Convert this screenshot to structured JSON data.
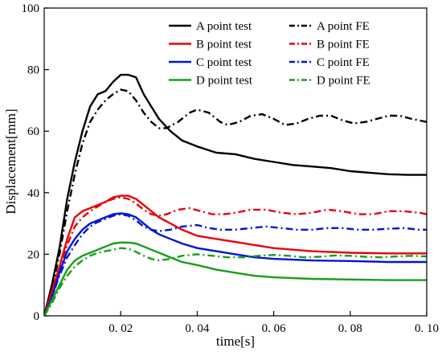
{
  "chart_data": {
    "type": "line",
    "xlabel": "time[s]",
    "ylabel": "Displacement[mm]",
    "xlim": [
      0,
      0.1
    ],
    "ylim": [
      0,
      100
    ],
    "x_ticks": [
      {
        "value": 0.02,
        "label": "0. 02"
      },
      {
        "value": 0.04,
        "label": "0. 04"
      },
      {
        "value": 0.06,
        "label": "0. 06"
      },
      {
        "value": 0.08,
        "label": "0. 08"
      },
      {
        "value": 0.1,
        "label": "0. 10"
      }
    ],
    "y_ticks": [
      {
        "value": 0,
        "label": "0"
      },
      {
        "value": 20,
        "label": "20"
      },
      {
        "value": 40,
        "label": "40"
      },
      {
        "value": 60,
        "label": "60"
      },
      {
        "value": 80,
        "label": "80"
      },
      {
        "value": 100,
        "label": "100"
      }
    ],
    "grid": false,
    "legend_position": "top-right",
    "series": [
      {
        "name": "A point test",
        "color": "#000000",
        "style": "solid",
        "points": [
          [
            0,
            0
          ],
          [
            0.002,
            10
          ],
          [
            0.004,
            22
          ],
          [
            0.006,
            38
          ],
          [
            0.008,
            50
          ],
          [
            0.01,
            60
          ],
          [
            0.012,
            68
          ],
          [
            0.014,
            72
          ],
          [
            0.016,
            73
          ],
          [
            0.018,
            76
          ],
          [
            0.02,
            78.3
          ],
          [
            0.022,
            78.3
          ],
          [
            0.024,
            77.5
          ],
          [
            0.026,
            72
          ],
          [
            0.028,
            68
          ],
          [
            0.03,
            64
          ],
          [
            0.033,
            60
          ],
          [
            0.036,
            57
          ],
          [
            0.04,
            55
          ],
          [
            0.045,
            53
          ],
          [
            0.05,
            52.5
          ],
          [
            0.055,
            51
          ],
          [
            0.06,
            50
          ],
          [
            0.065,
            49
          ],
          [
            0.07,
            48.5
          ],
          [
            0.075,
            48
          ],
          [
            0.08,
            47
          ],
          [
            0.085,
            46.5
          ],
          [
            0.09,
            46
          ],
          [
            0.095,
            45.8
          ],
          [
            0.1,
            45.8
          ]
        ]
      },
      {
        "name": "A point FE",
        "color": "#000000",
        "style": "dashdot",
        "points": [
          [
            0,
            0
          ],
          [
            0.002,
            8
          ],
          [
            0.004,
            20
          ],
          [
            0.006,
            34
          ],
          [
            0.008,
            46
          ],
          [
            0.01,
            56
          ],
          [
            0.012,
            63
          ],
          [
            0.014,
            67
          ],
          [
            0.016,
            70
          ],
          [
            0.018,
            72
          ],
          [
            0.02,
            73.5
          ],
          [
            0.022,
            73
          ],
          [
            0.024,
            70
          ],
          [
            0.026,
            66
          ],
          [
            0.028,
            63
          ],
          [
            0.03,
            61
          ],
          [
            0.032,
            61
          ],
          [
            0.035,
            63
          ],
          [
            0.038,
            66
          ],
          [
            0.04,
            67
          ],
          [
            0.043,
            66
          ],
          [
            0.046,
            63
          ],
          [
            0.048,
            62
          ],
          [
            0.051,
            63
          ],
          [
            0.054,
            65
          ],
          [
            0.057,
            65.5
          ],
          [
            0.06,
            64
          ],
          [
            0.063,
            62
          ],
          [
            0.066,
            62.5
          ],
          [
            0.069,
            64
          ],
          [
            0.072,
            65
          ],
          [
            0.075,
            65
          ],
          [
            0.078,
            63.5
          ],
          [
            0.081,
            62.5
          ],
          [
            0.084,
            63
          ],
          [
            0.087,
            64
          ],
          [
            0.09,
            65
          ],
          [
            0.093,
            65
          ],
          [
            0.096,
            64
          ],
          [
            0.1,
            63
          ]
        ]
      },
      {
        "name": "B point test",
        "color": "#e8000b",
        "style": "solid",
        "points": [
          [
            0,
            0
          ],
          [
            0.002,
            8
          ],
          [
            0.004,
            16
          ],
          [
            0.006,
            25
          ],
          [
            0.008,
            32
          ],
          [
            0.01,
            34
          ],
          [
            0.012,
            35
          ],
          [
            0.014,
            36
          ],
          [
            0.016,
            37
          ],
          [
            0.018,
            38.5
          ],
          [
            0.02,
            39
          ],
          [
            0.022,
            39
          ],
          [
            0.024,
            38
          ],
          [
            0.026,
            36
          ],
          [
            0.028,
            34
          ],
          [
            0.03,
            32
          ],
          [
            0.033,
            30
          ],
          [
            0.036,
            28
          ],
          [
            0.04,
            26
          ],
          [
            0.045,
            25
          ],
          [
            0.05,
            24
          ],
          [
            0.055,
            23
          ],
          [
            0.06,
            22
          ],
          [
            0.065,
            21.5
          ],
          [
            0.07,
            21
          ],
          [
            0.08,
            20.5
          ],
          [
            0.09,
            20.3
          ],
          [
            0.1,
            20.3
          ]
        ]
      },
      {
        "name": "B point FE",
        "color": "#e8000b",
        "style": "dashdot",
        "points": [
          [
            0,
            0
          ],
          [
            0.002,
            7
          ],
          [
            0.004,
            15
          ],
          [
            0.006,
            23
          ],
          [
            0.008,
            29
          ],
          [
            0.01,
            32
          ],
          [
            0.012,
            34
          ],
          [
            0.014,
            35.5
          ],
          [
            0.016,
            37
          ],
          [
            0.018,
            38
          ],
          [
            0.02,
            38.5
          ],
          [
            0.022,
            38
          ],
          [
            0.024,
            36.5
          ],
          [
            0.026,
            34.5
          ],
          [
            0.028,
            33
          ],
          [
            0.03,
            32.5
          ],
          [
            0.032,
            33
          ],
          [
            0.035,
            34.5
          ],
          [
            0.038,
            35
          ],
          [
            0.041,
            34
          ],
          [
            0.044,
            33
          ],
          [
            0.047,
            33
          ],
          [
            0.05,
            33.5
          ],
          [
            0.054,
            34.5
          ],
          [
            0.058,
            34.5
          ],
          [
            0.062,
            33.5
          ],
          [
            0.066,
            33
          ],
          [
            0.07,
            33.5
          ],
          [
            0.074,
            34.5
          ],
          [
            0.078,
            34
          ],
          [
            0.082,
            33
          ],
          [
            0.086,
            33
          ],
          [
            0.09,
            34
          ],
          [
            0.094,
            34
          ],
          [
            0.098,
            33.5
          ],
          [
            0.1,
            33
          ]
        ]
      },
      {
        "name": "C point test",
        "color": "#0015d6",
        "style": "solid",
        "points": [
          [
            0,
            0
          ],
          [
            0.002,
            6
          ],
          [
            0.004,
            14
          ],
          [
            0.006,
            21
          ],
          [
            0.008,
            25
          ],
          [
            0.01,
            28
          ],
          [
            0.012,
            30
          ],
          [
            0.014,
            31
          ],
          [
            0.016,
            32
          ],
          [
            0.018,
            33
          ],
          [
            0.02,
            33.3
          ],
          [
            0.022,
            33
          ],
          [
            0.024,
            32
          ],
          [
            0.026,
            30
          ],
          [
            0.028,
            28
          ],
          [
            0.03,
            26.5
          ],
          [
            0.033,
            25
          ],
          [
            0.036,
            23.5
          ],
          [
            0.04,
            22
          ],
          [
            0.045,
            21
          ],
          [
            0.05,
            20
          ],
          [
            0.055,
            19
          ],
          [
            0.06,
            18.5
          ],
          [
            0.07,
            18
          ],
          [
            0.08,
            17.8
          ],
          [
            0.09,
            17.5
          ],
          [
            0.1,
            17.5
          ]
        ]
      },
      {
        "name": "C point FE",
        "color": "#0015d6",
        "style": "dashdot",
        "points": [
          [
            0,
            0
          ],
          [
            0.002,
            6
          ],
          [
            0.004,
            13
          ],
          [
            0.006,
            19
          ],
          [
            0.008,
            23
          ],
          [
            0.01,
            26.5
          ],
          [
            0.012,
            29
          ],
          [
            0.014,
            30.5
          ],
          [
            0.016,
            31.5
          ],
          [
            0.018,
            32.5
          ],
          [
            0.02,
            33
          ],
          [
            0.022,
            32.5
          ],
          [
            0.024,
            31
          ],
          [
            0.026,
            29
          ],
          [
            0.028,
            28
          ],
          [
            0.03,
            27.5
          ],
          [
            0.033,
            28
          ],
          [
            0.036,
            29
          ],
          [
            0.04,
            29.5
          ],
          [
            0.043,
            28.5
          ],
          [
            0.046,
            28
          ],
          [
            0.05,
            28
          ],
          [
            0.054,
            28.5
          ],
          [
            0.058,
            29
          ],
          [
            0.062,
            28.5
          ],
          [
            0.066,
            28
          ],
          [
            0.07,
            28
          ],
          [
            0.074,
            28.5
          ],
          [
            0.078,
            28.5
          ],
          [
            0.082,
            28
          ],
          [
            0.086,
            28
          ],
          [
            0.09,
            28.3
          ],
          [
            0.094,
            28.5
          ],
          [
            0.098,
            28
          ],
          [
            0.1,
            28
          ]
        ]
      },
      {
        "name": "D point test",
        "color": "#1a9e1a",
        "style": "solid",
        "points": [
          [
            0,
            0
          ],
          [
            0.002,
            5
          ],
          [
            0.004,
            10
          ],
          [
            0.006,
            15
          ],
          [
            0.008,
            18
          ],
          [
            0.01,
            19.5
          ],
          [
            0.012,
            20.5
          ],
          [
            0.014,
            21.5
          ],
          [
            0.016,
            22.5
          ],
          [
            0.018,
            23.5
          ],
          [
            0.02,
            23.8
          ],
          [
            0.022,
            23.8
          ],
          [
            0.024,
            23.5
          ],
          [
            0.026,
            22.5
          ],
          [
            0.028,
            21.5
          ],
          [
            0.03,
            20.5
          ],
          [
            0.033,
            19
          ],
          [
            0.036,
            17.5
          ],
          [
            0.04,
            16.5
          ],
          [
            0.045,
            15
          ],
          [
            0.05,
            14
          ],
          [
            0.055,
            13
          ],
          [
            0.06,
            12.5
          ],
          [
            0.07,
            12
          ],
          [
            0.08,
            11.8
          ],
          [
            0.09,
            11.6
          ],
          [
            0.1,
            11.6
          ]
        ]
      },
      {
        "name": "D point FE",
        "color": "#1a9e1a",
        "style": "dashdot",
        "points": [
          [
            0,
            0
          ],
          [
            0.002,
            4
          ],
          [
            0.004,
            9
          ],
          [
            0.006,
            13
          ],
          [
            0.008,
            16
          ],
          [
            0.01,
            18
          ],
          [
            0.012,
            19.5
          ],
          [
            0.014,
            20.5
          ],
          [
            0.016,
            21
          ],
          [
            0.018,
            21.5
          ],
          [
            0.02,
            22
          ],
          [
            0.022,
            21.8
          ],
          [
            0.024,
            20.8
          ],
          [
            0.026,
            19.5
          ],
          [
            0.028,
            18.5
          ],
          [
            0.03,
            18
          ],
          [
            0.033,
            18.5
          ],
          [
            0.036,
            19.5
          ],
          [
            0.04,
            20
          ],
          [
            0.044,
            19.5
          ],
          [
            0.048,
            19
          ],
          [
            0.052,
            19
          ],
          [
            0.056,
            19.5
          ],
          [
            0.06,
            19.8
          ],
          [
            0.064,
            19.5
          ],
          [
            0.068,
            19
          ],
          [
            0.072,
            19.2
          ],
          [
            0.076,
            19.6
          ],
          [
            0.08,
            19.5
          ],
          [
            0.084,
            19.2
          ],
          [
            0.088,
            19
          ],
          [
            0.092,
            19.3
          ],
          [
            0.096,
            19.5
          ],
          [
            0.1,
            19.3
          ]
        ]
      }
    ]
  }
}
